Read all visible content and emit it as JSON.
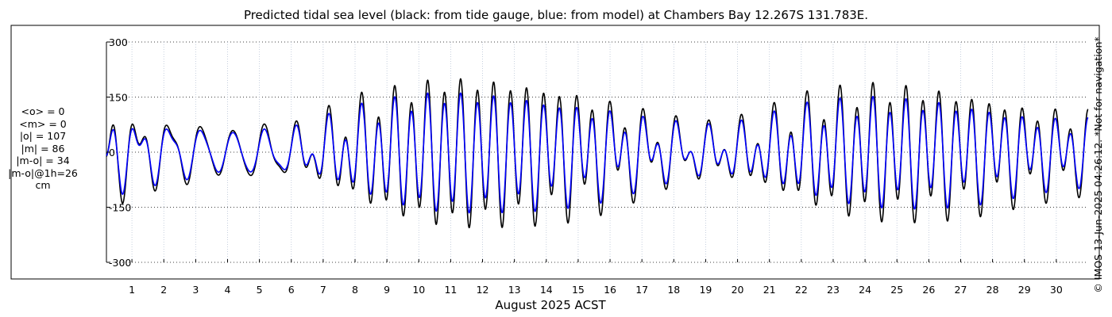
{
  "chart_data": {
    "type": "line",
    "title": "Predicted tidal sea level (black: from tide gauge, blue: from model) at Chambers Bay 12.267S 131.783E.",
    "xlabel": "August 2025 ACST",
    "ylabel": "",
    "xlim": [
      0.2,
      31
    ],
    "ylim": [
      -300,
      300
    ],
    "x_ticks": [
      "1",
      "2",
      "3",
      "4",
      "5",
      "6",
      "7",
      "8",
      "9",
      "10",
      "11",
      "12",
      "13",
      "14",
      "15",
      "16",
      "17",
      "18",
      "19",
      "20",
      "21",
      "22",
      "23",
      "24",
      "25",
      "26",
      "27",
      "28",
      "29",
      "30"
    ],
    "y_ticks": [
      300,
      150,
      0,
      -150,
      -300
    ],
    "grid": true,
    "stats": [
      "<o> = 0",
      "<m> = 0",
      "|o| = 107",
      "|m| = 86",
      "|m-o| = 34",
      "|m-o|@1h=26",
      "cm"
    ],
    "series": [
      {
        "name": "from tide gauge",
        "color": "#000000",
        "amplitude_envelope": [
          [
            0.2,
            120
          ],
          [
            0.7,
            140
          ],
          [
            1.5,
            110
          ],
          [
            2.5,
            100
          ],
          [
            3.5,
            70
          ],
          [
            4.3,
            60
          ],
          [
            5.0,
            80
          ],
          [
            6.0,
            80
          ],
          [
            7.0,
            120
          ],
          [
            8.0,
            160
          ],
          [
            9.0,
            180
          ],
          [
            10.0,
            200
          ],
          [
            11.0,
            210
          ],
          [
            12.0,
            210
          ],
          [
            13.0,
            205
          ],
          [
            14.0,
            200
          ],
          [
            15.0,
            190
          ],
          [
            16.0,
            170
          ],
          [
            17.0,
            140
          ],
          [
            18.0,
            110
          ],
          [
            19.0,
            90
          ],
          [
            20.0,
            100
          ],
          [
            21.0,
            130
          ],
          [
            22.0,
            165
          ],
          [
            23.0,
            185
          ],
          [
            24.0,
            200
          ],
          [
            25.0,
            200
          ],
          [
            26.0,
            195
          ],
          [
            27.0,
            185
          ],
          [
            28.0,
            170
          ],
          [
            29.0,
            150
          ],
          [
            30.0,
            140
          ],
          [
            31.0,
            130
          ]
        ],
        "diurnal_fraction": [
          [
            0.2,
            0.45
          ],
          [
            3.0,
            0.85
          ],
          [
            4.3,
            0.95
          ],
          [
            5.5,
            0.8
          ],
          [
            7.0,
            0.45
          ],
          [
            9.0,
            0.2
          ],
          [
            11.0,
            0.12
          ],
          [
            13.0,
            0.15
          ],
          [
            15.0,
            0.25
          ],
          [
            17.0,
            0.45
          ],
          [
            18.5,
            0.55
          ],
          [
            20.0,
            0.45
          ],
          [
            22.0,
            0.3
          ],
          [
            24.0,
            0.2
          ],
          [
            26.0,
            0.2
          ],
          [
            28.0,
            0.25
          ],
          [
            30.0,
            0.35
          ],
          [
            31.0,
            0.35
          ]
        ]
      },
      {
        "name": "from model",
        "color": "#0000ff",
        "amplitude_envelope": [
          [
            0.2,
            100
          ],
          [
            0.7,
            115
          ],
          [
            1.5,
            95
          ],
          [
            2.5,
            85
          ],
          [
            3.5,
            60
          ],
          [
            4.3,
            55
          ],
          [
            5.0,
            65
          ],
          [
            6.0,
            70
          ],
          [
            7.0,
            100
          ],
          [
            8.0,
            130
          ],
          [
            9.0,
            150
          ],
          [
            10.0,
            165
          ],
          [
            11.0,
            170
          ],
          [
            12.0,
            168
          ],
          [
            13.0,
            165
          ],
          [
            14.0,
            160
          ],
          [
            15.0,
            150
          ],
          [
            16.0,
            138
          ],
          [
            17.0,
            115
          ],
          [
            18.0,
            95
          ],
          [
            19.0,
            80
          ],
          [
            20.0,
            85
          ],
          [
            21.0,
            108
          ],
          [
            22.0,
            135
          ],
          [
            23.0,
            150
          ],
          [
            24.0,
            160
          ],
          [
            25.0,
            160
          ],
          [
            26.0,
            158
          ],
          [
            27.0,
            150
          ],
          [
            28.0,
            140
          ],
          [
            29.0,
            120
          ],
          [
            30.0,
            110
          ],
          [
            31.0,
            105
          ]
        ],
        "diurnal_fraction": [
          [
            0.2,
            0.45
          ],
          [
            3.0,
            0.85
          ],
          [
            4.3,
            0.95
          ],
          [
            5.5,
            0.8
          ],
          [
            7.0,
            0.45
          ],
          [
            9.0,
            0.2
          ],
          [
            11.0,
            0.12
          ],
          [
            13.0,
            0.15
          ],
          [
            15.0,
            0.25
          ],
          [
            17.0,
            0.45
          ],
          [
            18.5,
            0.55
          ],
          [
            20.0,
            0.45
          ],
          [
            22.0,
            0.3
          ],
          [
            24.0,
            0.2
          ],
          [
            26.0,
            0.2
          ],
          [
            28.0,
            0.25
          ],
          [
            30.0,
            0.35
          ],
          [
            31.0,
            0.35
          ]
        ]
      }
    ]
  },
  "credit": "© IMOS 13-Jun-2025 04:26:12. *Not for navigation*"
}
